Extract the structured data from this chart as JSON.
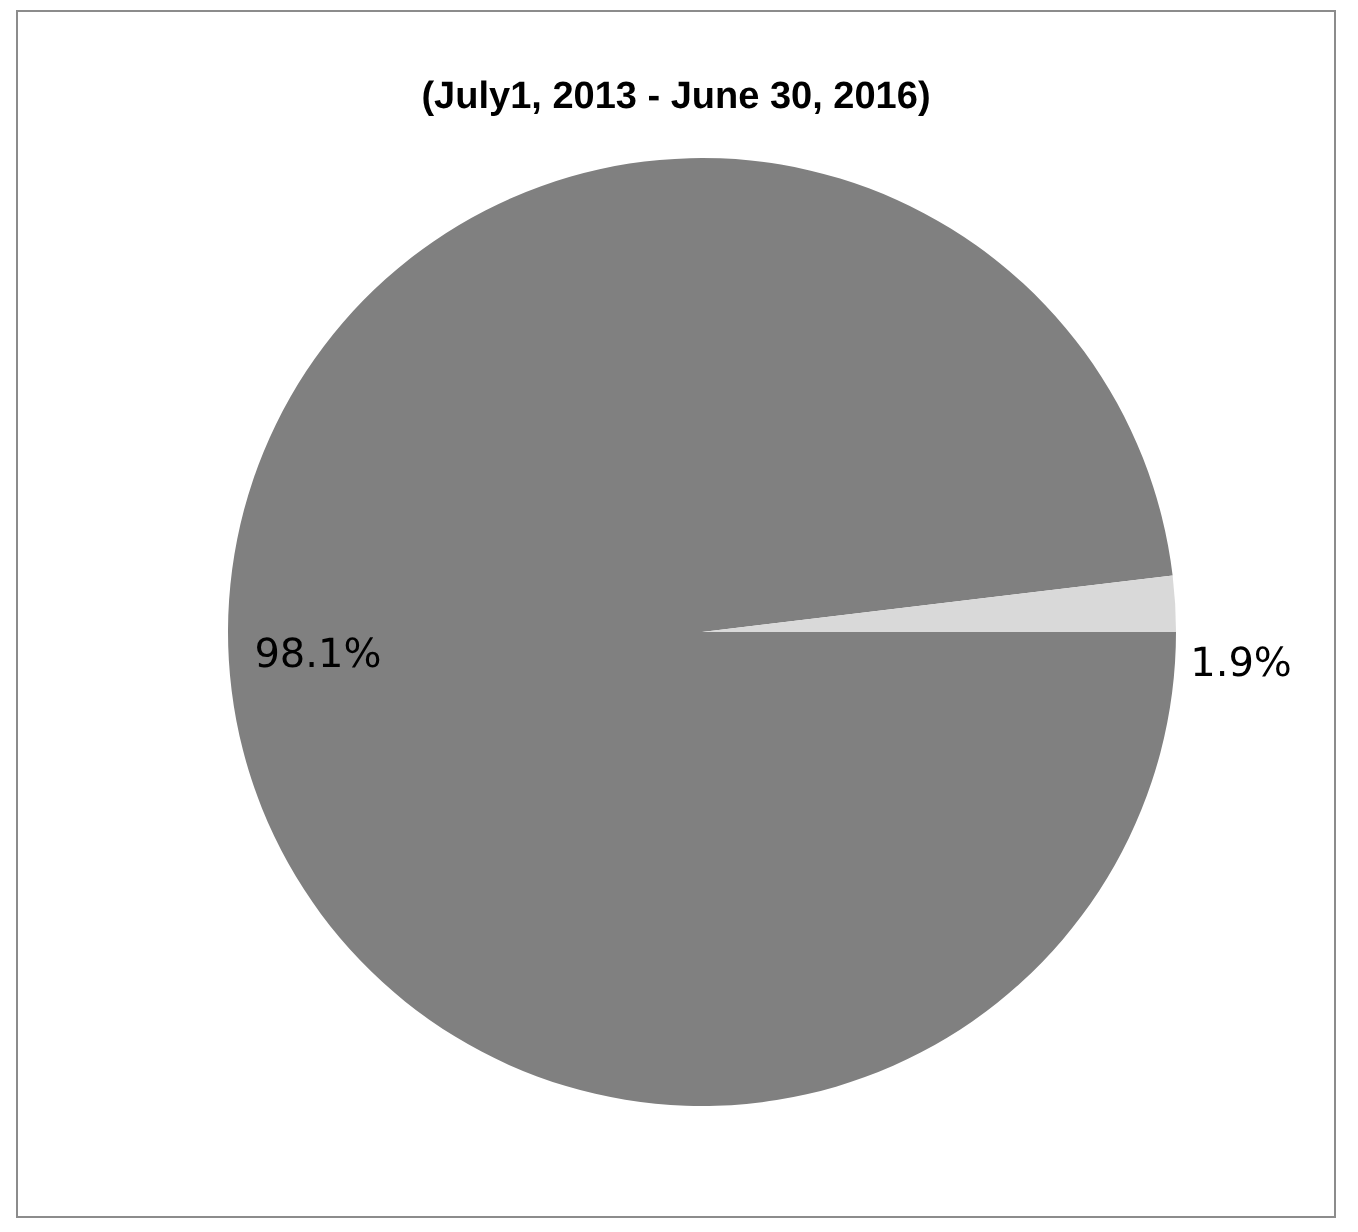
{
  "chart_data": {
    "type": "pie",
    "title": "(July1, 2013 - June 30, 2016)",
    "categories": [
      null,
      null
    ],
    "values": [
      98.1,
      1.9
    ],
    "colors": [
      "#808080",
      "#d9d9d9"
    ],
    "value_labels": [
      "98.1%",
      "1.9%"
    ],
    "legend": false
  }
}
